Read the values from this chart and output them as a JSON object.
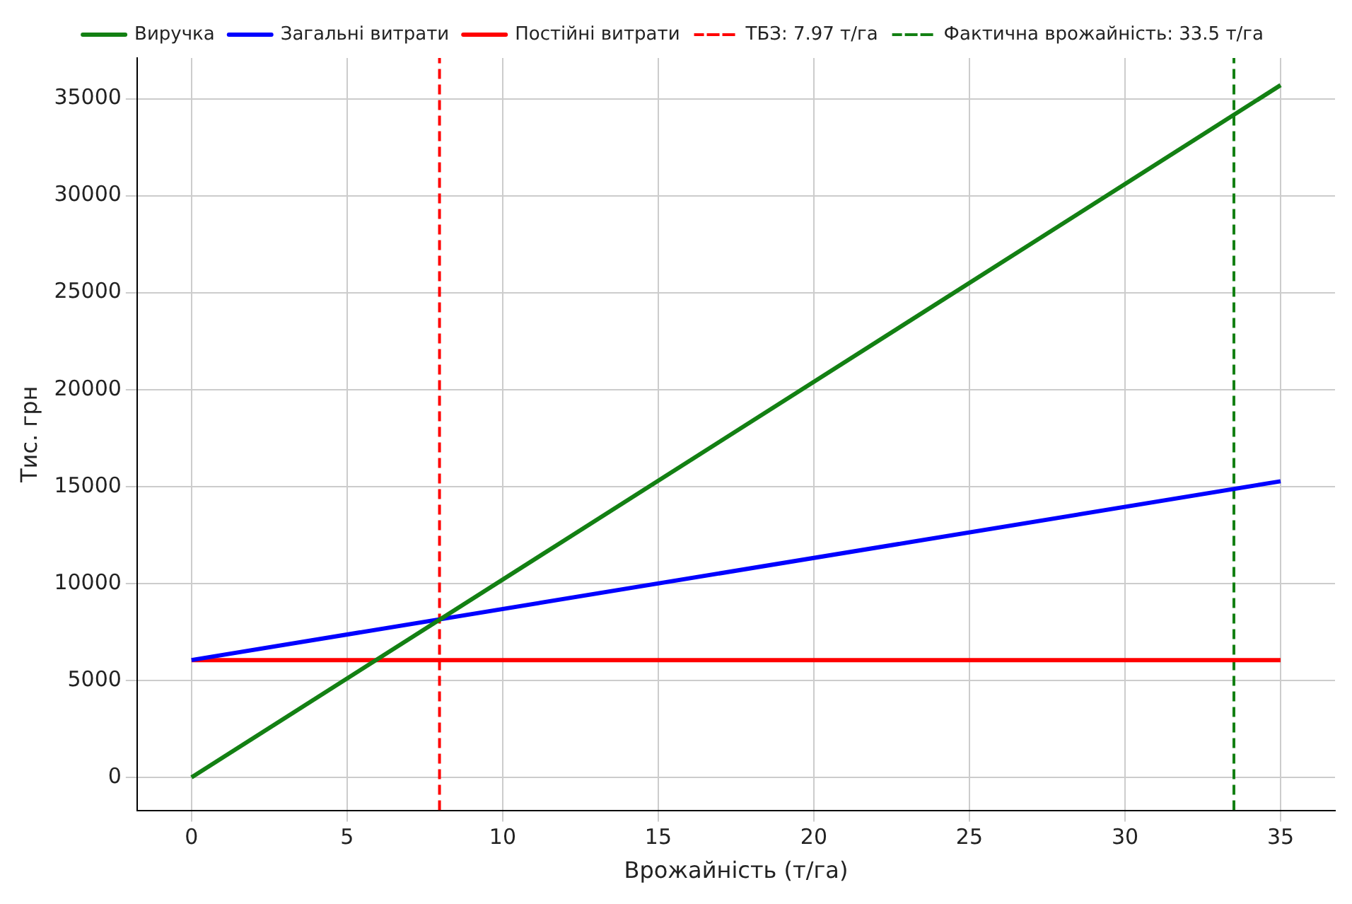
{
  "chart_data": {
    "type": "line",
    "xlabel": "Врожайність (т/га)",
    "ylabel": "Тис. грн",
    "x": [
      0,
      35
    ],
    "series": [
      {
        "name": "Виручка",
        "color": "#138013",
        "values": [
          0,
          35700
        ]
      },
      {
        "name": "Загальні витрати",
        "color": "#0000ff",
        "values": [
          6050,
          15270
        ]
      },
      {
        "name": "Постійні витрати",
        "color": "#ff0000",
        "values": [
          6050,
          6050
        ]
      }
    ],
    "ref_lines": [
      {
        "axis": "x",
        "value": 7.97,
        "label": "ТБЗ: 7.97 т/га",
        "color": "#ff0000",
        "line_style": "dashed"
      },
      {
        "axis": "x",
        "value": 33.5,
        "label": "Фактична врожайність: 33.5 т/га",
        "color": "#138013",
        "line_style": "dashed"
      }
    ],
    "xlim": [
      -1.75,
      36.75
    ],
    "xticks": [
      0,
      5,
      10,
      15,
      20,
      25,
      30,
      35
    ],
    "ylim": [
      -1700,
      37100
    ],
    "yticks": [
      0,
      5000,
      10000,
      15000,
      20000,
      25000,
      30000,
      35000
    ],
    "grid": true,
    "legend": "top",
    "marker": "none",
    "line_style": "solid"
  }
}
